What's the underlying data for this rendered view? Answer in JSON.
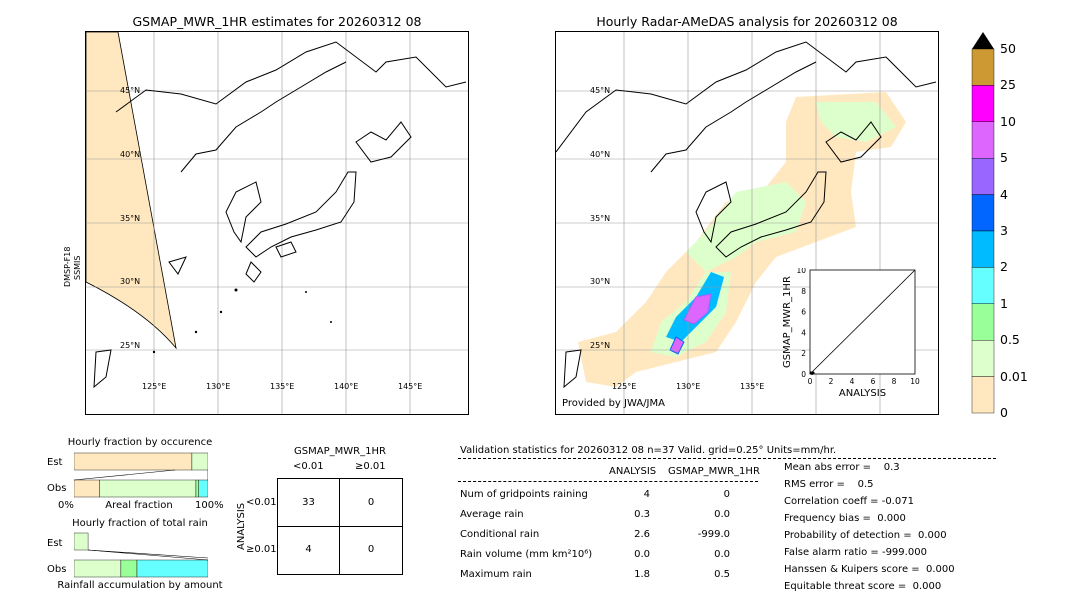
{
  "left_map": {
    "title": "GSMAP_MWR_1HR estimates for 20260312 08",
    "side_label_1": "DMSP-F18",
    "side_label_2": "SSMIS",
    "lat_labels": [
      "45°N",
      "40°N",
      "35°N",
      "30°N",
      "25°N"
    ],
    "lon_labels": [
      "125°E",
      "130°E",
      "135°E",
      "140°E",
      "145°E"
    ]
  },
  "right_map": {
    "title": "Hourly Radar-AMeDAS analysis for 20260312 08",
    "provided_by": "Provided by JWA/JMA",
    "lat_labels": [
      "45°N",
      "40°N",
      "35°N",
      "30°N",
      "25°N"
    ],
    "lon_labels": [
      "125°E",
      "130°E",
      "135°E"
    ]
  },
  "scatter_inset": {
    "xlabel": "ANALYSIS",
    "ylabel": "GSMAP_MWR_1HR",
    "ticks": [
      "0",
      "2",
      "4",
      "6",
      "8",
      "10"
    ]
  },
  "colorbar": {
    "labels": [
      "50",
      "25",
      "10",
      "5",
      "4",
      "3",
      "2",
      "1",
      "0.5",
      "0.01",
      "0"
    ],
    "colors": [
      "#cc9933",
      "#ff00ff",
      "#dd66ff",
      "#9966ff",
      "#0066ff",
      "#00bbff",
      "#66ffff",
      "#99ff99",
      "#ddffcc",
      "#ffe8bf"
    ],
    "extend_color": "#000000"
  },
  "occurrence": {
    "title": "Hourly fraction by occurence",
    "row_est": "Est",
    "row_obs": "Obs",
    "axis_left": "0%",
    "axis_mid": "Areal fraction",
    "axis_right": "100%"
  },
  "total_rain": {
    "title": "Hourly fraction of total rain",
    "row_est": "Est",
    "row_obs": "Obs",
    "axis_label": "Rainfall accumulation by amount"
  },
  "contingency": {
    "title": "GSMAP_MWR_1HR",
    "col_lt": "<0.01",
    "col_ge": "≥0.01",
    "row_axis": "ANALYSIS",
    "row_lt": "<0.01",
    "row_ge": "≥0.01",
    "cells": [
      "33",
      "0",
      "4",
      "0"
    ]
  },
  "stats": {
    "header": "Validation statistics for 20260312 08  n=37 Valid. grid=0.25° Units=mm/hr.",
    "col_analysis": "ANALYSIS",
    "col_gsmap": "GSMAP_MWR_1HR",
    "rows": [
      {
        "label": "Num of gridpoints raining",
        "analysis": "4",
        "gsmap": "0"
      },
      {
        "label": "Average rain",
        "analysis": "0.3",
        "gsmap": "0.0"
      },
      {
        "label": "Conditional rain",
        "analysis": "2.6",
        "gsmap": "-999.0"
      },
      {
        "label": "Rain volume (mm km²10⁶)",
        "analysis": "0.0",
        "gsmap": "0.0"
      },
      {
        "label": "Maximum rain",
        "analysis": "1.8",
        "gsmap": "0.5"
      }
    ],
    "scores": [
      "Mean abs error =    0.3",
      "RMS error =    0.5",
      "Correlation coeff = -0.071",
      "Frequency bias =  0.000",
      "Probability of detection =  0.000",
      "False alarm ratio = -999.000",
      "Hanssen & Kuipers score =  0.000",
      "Equitable threat score =  0.000"
    ]
  },
  "chart_data": [
    {
      "type": "bar",
      "title": "Hourly fraction by occurence",
      "categories": [
        "Est",
        "Obs"
      ],
      "series": [
        {
          "name": "0",
          "values": [
            0.88,
            0.19
          ]
        },
        {
          "name": "0.01",
          "values": [
            0.12,
            0.72
          ]
        },
        {
          "name": "0.5",
          "values": [
            0.0,
            0.02
          ]
        },
        {
          "name": "1",
          "values": [
            0.0,
            0.07
          ]
        }
      ]
    },
    {
      "type": "bar",
      "title": "Hourly fraction of total rain",
      "categories": [
        "Est",
        "Obs"
      ],
      "series": [
        {
          "name": "0.01",
          "values": [
            1.0,
            0.35
          ]
        },
        {
          "name": "0.5",
          "values": [
            0.0,
            0.12
          ]
        },
        {
          "name": "1",
          "values": [
            0.0,
            0.53
          ]
        }
      ]
    },
    {
      "type": "scatter",
      "xlabel": "ANALYSIS",
      "ylabel": "GSMAP_MWR_1HR",
      "xlim": [
        0,
        10
      ],
      "ylim": [
        0,
        10
      ],
      "points": [
        [
          0.1,
          0.1
        ],
        [
          0.2,
          0.05
        ],
        [
          0.3,
          0.1
        ]
      ]
    }
  ]
}
